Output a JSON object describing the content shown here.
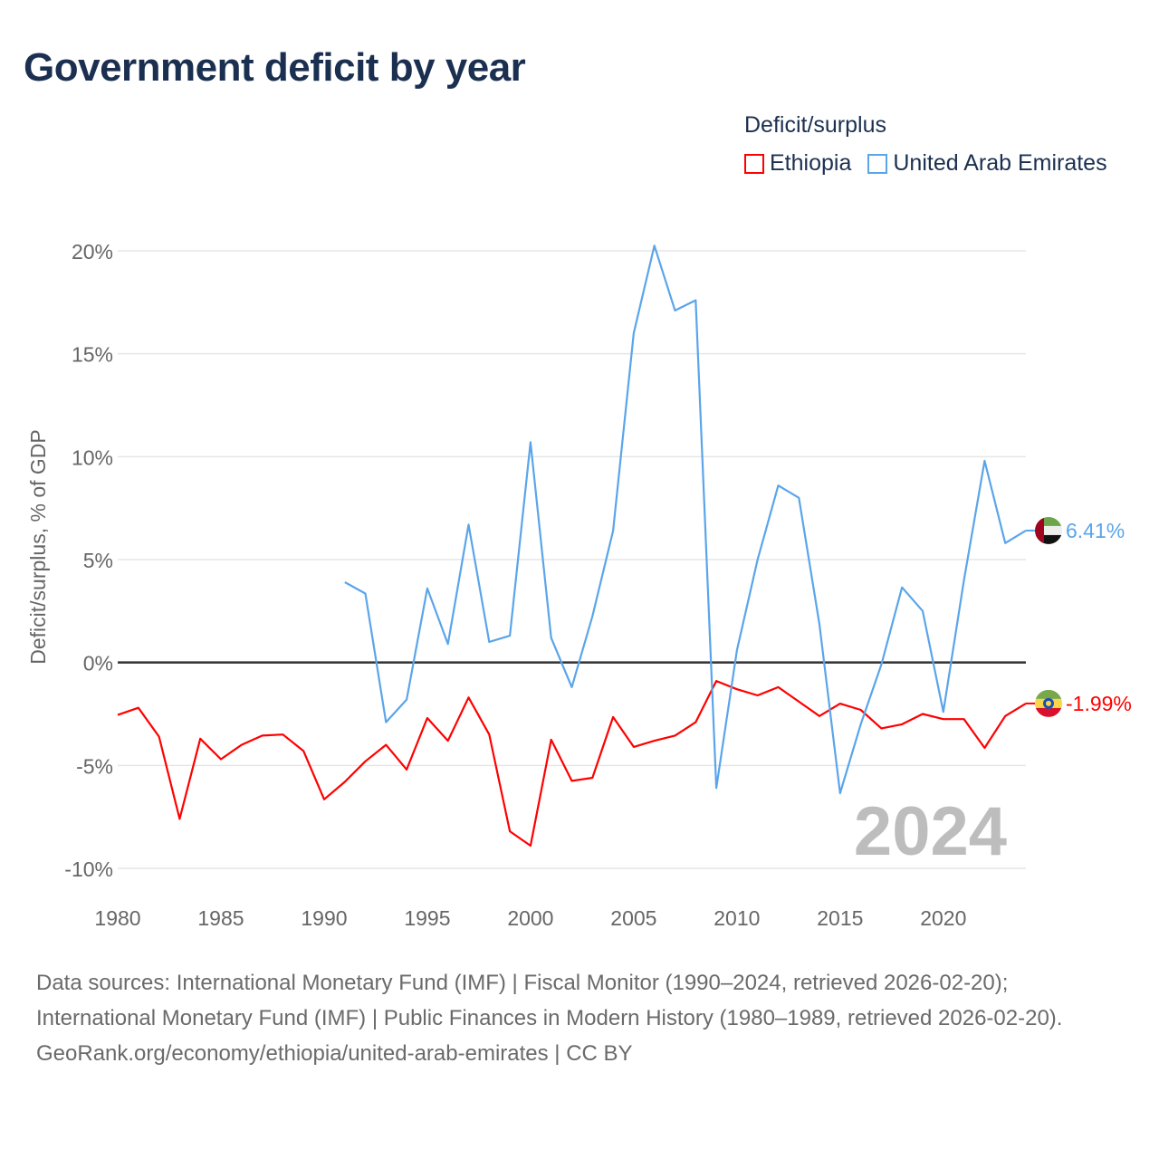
{
  "title": "Government deficit by year",
  "legend_title": "Deficit/surplus",
  "sources": [
    "Data sources: International Monetary Fund (IMF) | Fiscal Monitor (1990–2024, retrieved 2026-02-20); International Monetary Fund (IMF) | Public Finances in Modern History (1980–1989, retrieved 2026-02-20).",
    "GeoRank.org/economy/ethiopia/united-arab-emirates | CC BY"
  ],
  "chart_data": {
    "type": "line",
    "title": "Government deficit by year",
    "xlabel": "",
    "ylabel": "Deficit/surplus, % of GDP",
    "xlim": [
      1980,
      2024
    ],
    "ylim": [
      -10,
      20
    ],
    "xticks": [
      1980,
      1985,
      1990,
      1995,
      2000,
      2005,
      2010,
      2015,
      2020
    ],
    "yticks": [
      -10,
      -5,
      0,
      5,
      10,
      15,
      20
    ],
    "ytick_labels": [
      "-10%",
      "-5%",
      "0%",
      "5%",
      "10%",
      "15%",
      "20%"
    ],
    "grid": true,
    "legend_placement": "top-right",
    "year_watermark": "2024",
    "series": [
      {
        "name": "Ethiopia",
        "color": "#ff0000",
        "end_label": "-1.99%",
        "x": [
          1980,
          1981,
          1982,
          1983,
          1984,
          1985,
          1986,
          1987,
          1988,
          1989,
          1990,
          1991,
          1992,
          1993,
          1994,
          1995,
          1996,
          1997,
          1998,
          1999,
          2000,
          2001,
          2002,
          2003,
          2004,
          2005,
          2006,
          2007,
          2008,
          2009,
          2010,
          2011,
          2012,
          2013,
          2014,
          2015,
          2016,
          2017,
          2018,
          2019,
          2020,
          2021,
          2022,
          2023,
          2024
        ],
        "values": [
          -2.55,
          -2.2,
          -3.6,
          -7.6,
          -3.7,
          -4.7,
          -4.0,
          -3.55,
          -3.5,
          -4.3,
          -6.65,
          -5.8,
          -4.8,
          -4.0,
          -5.2,
          -2.7,
          -3.8,
          -1.7,
          -3.5,
          -8.2,
          -8.9,
          -3.75,
          -5.75,
          -5.6,
          -2.65,
          -4.1,
          -3.8,
          -3.55,
          -2.9,
          -0.9,
          -1.3,
          -1.6,
          -1.2,
          -1.9,
          -2.6,
          -2.0,
          -2.3,
          -3.2,
          -3.0,
          -2.5,
          -2.75,
          -2.75,
          -4.15,
          -2.6,
          -1.99
        ]
      },
      {
        "name": "United Arab Emirates",
        "color": "#5aa5ea",
        "end_label": "6.41%",
        "x": [
          1991,
          1992,
          1993,
          1994,
          1995,
          1996,
          1997,
          1998,
          1999,
          2000,
          2001,
          2002,
          2003,
          2004,
          2005,
          2006,
          2007,
          2008,
          2009,
          2010,
          2011,
          2012,
          2013,
          2014,
          2015,
          2016,
          2017,
          2018,
          2019,
          2020,
          2021,
          2022,
          2023,
          2024
        ],
        "values": [
          3.9,
          3.35,
          -2.9,
          -1.8,
          3.6,
          0.9,
          6.7,
          1.0,
          1.3,
          10.7,
          1.2,
          -1.2,
          2.25,
          6.4,
          16.0,
          20.25,
          17.1,
          17.6,
          -6.1,
          0.6,
          5.0,
          8.6,
          8.0,
          1.85,
          -6.35,
          -3.0,
          -0.1,
          3.65,
          2.5,
          -2.4,
          4.0,
          9.8,
          5.8,
          6.41
        ]
      }
    ]
  }
}
